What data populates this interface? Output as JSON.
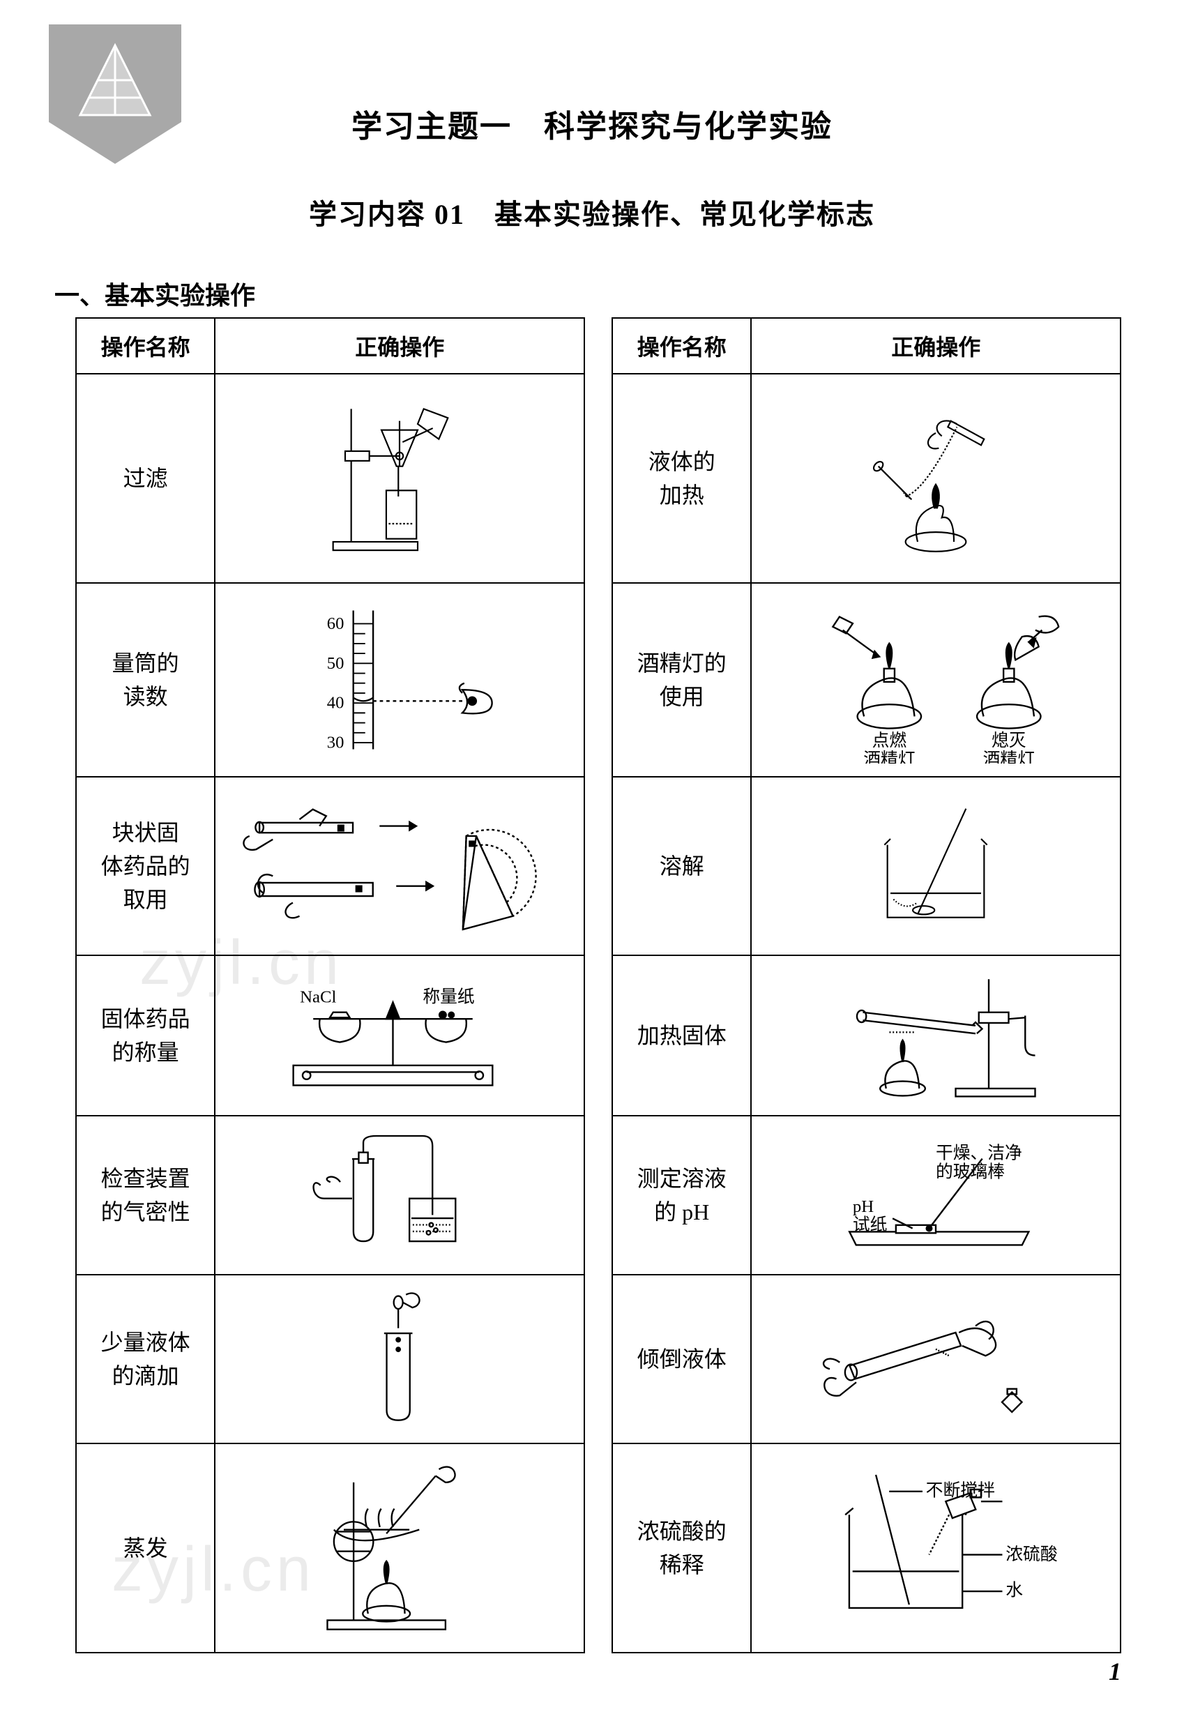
{
  "logo": {
    "fill": "#a8a8a8"
  },
  "titles": {
    "main": "学习主题一　科学探究与化学实验",
    "sub": "学习内容 01　基本实验操作、常见化学标志"
  },
  "section_heading": "一、基本实验操作",
  "table": {
    "headers": {
      "name": "操作名称",
      "op": "正确操作"
    },
    "rows": [
      {
        "left_name": "过滤",
        "right_name": "液体的\n加热"
      },
      {
        "left_name": "量筒的\n读数",
        "right_name": "酒精灯的\n使用"
      },
      {
        "left_name": "块状固\n体药品的\n取用",
        "right_name": "溶解"
      },
      {
        "left_name": "固体药品\n的称量",
        "right_name": "加热固体"
      },
      {
        "left_name": "检查装置\n的气密性",
        "right_name": "测定溶液\n的 pH"
      },
      {
        "left_name": "少量液体\n的滴加",
        "right_name": "倾倒液体"
      },
      {
        "left_name": "蒸发",
        "right_name": "浓硫酸的\n稀释"
      }
    ]
  },
  "diagram_labels": {
    "cylinder_ticks": [
      "60",
      "50",
      "40",
      "30"
    ],
    "nacl": "NaCl",
    "weigh_paper": "称量纸",
    "light_lamp": "点燃\n酒精灯",
    "extinguish_lamp": "熄灭\n酒精灯",
    "glass_rod": "干燥、洁净\n的玻璃棒",
    "ph_paper": "pH\n试纸",
    "stir": "不断搅拌",
    "acid": "浓硫酸",
    "water": "水"
  },
  "watermarks": [
    "zyjl.cn",
    "zyjl.cn"
  ],
  "page_number": "1",
  "colors": {
    "text": "#000000",
    "border": "#000000",
    "background": "#ffffff",
    "logo": "#a8a8a8",
    "watermark": "rgba(0,0,0,0.08)"
  },
  "fonts": {
    "title_size_pt": 44,
    "subtitle_size_pt": 40,
    "heading_size_pt": 36,
    "cell_size_pt": 32,
    "label_size_pt": 26
  }
}
